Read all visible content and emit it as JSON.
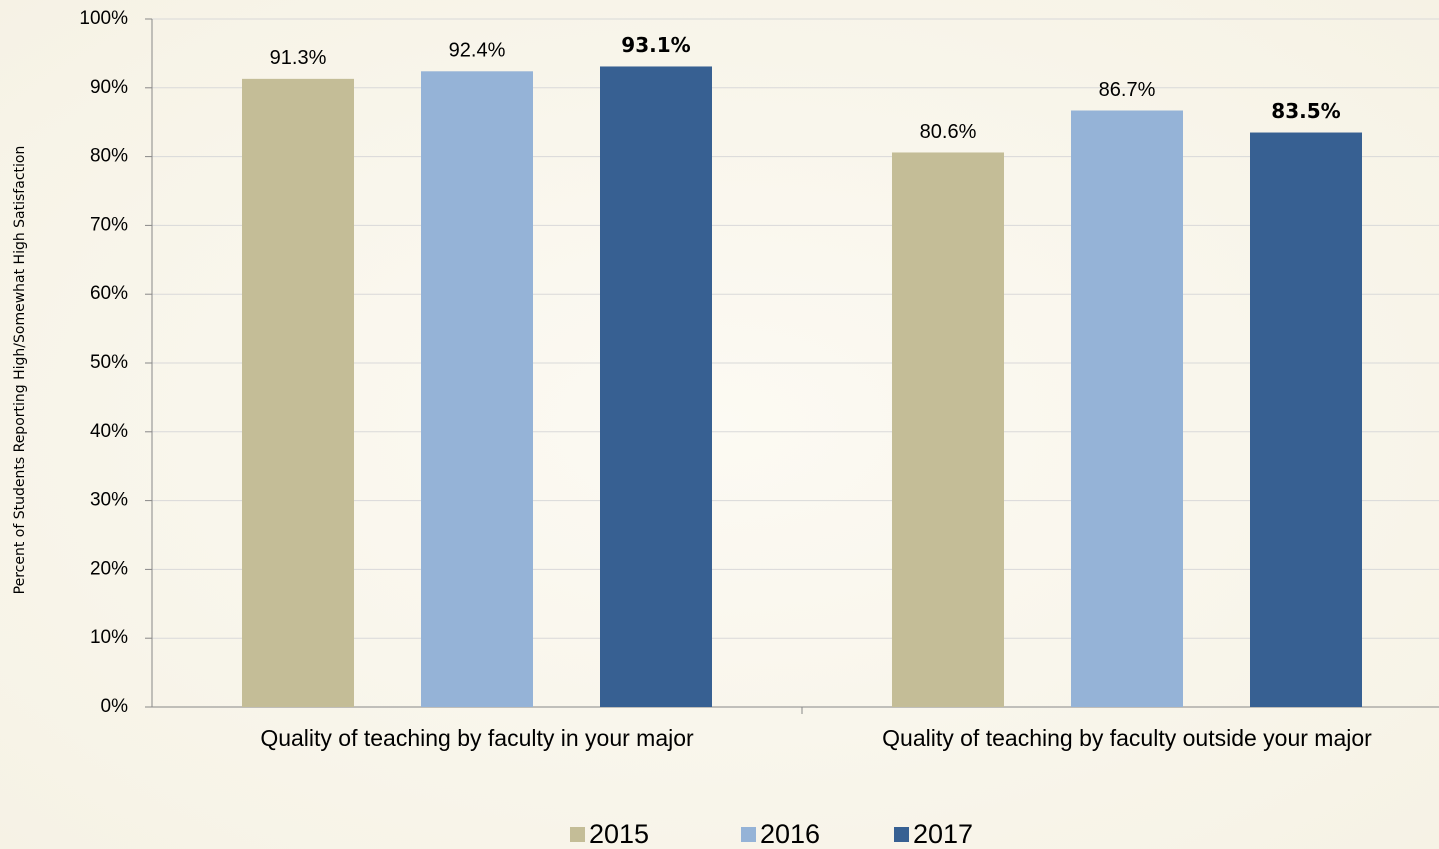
{
  "chart_data": {
    "type": "bar",
    "y_axis_label": "Percent of Students Reporting High/Somewhat High Satisfaction",
    "categories": [
      "Quality of teaching by faculty in your major",
      "Quality of teaching by faculty outside your major"
    ],
    "series": [
      {
        "name": "2015",
        "color": "#c4bd97",
        "values": [
          91.3,
          80.6
        ],
        "value_labels": [
          "91.3%",
          "80.6%"
        ]
      },
      {
        "name": "2016",
        "color": "#95b3d7",
        "values": [
          92.4,
          86.7
        ],
        "value_labels": [
          "92.4%",
          "86.7%"
        ]
      },
      {
        "name": "2017",
        "color": "#376092",
        "values": [
          93.1,
          83.5
        ],
        "value_labels": [
          "93.1%",
          "83.5%"
        ]
      }
    ],
    "ylim": [
      0,
      100
    ],
    "yticks": [
      {
        "value": 0,
        "label": "0%"
      },
      {
        "value": 10,
        "label": "10%"
      },
      {
        "value": 20,
        "label": "20%"
      },
      {
        "value": 30,
        "label": "30%"
      },
      {
        "value": 40,
        "label": "40%"
      },
      {
        "value": 50,
        "label": "50%"
      },
      {
        "value": 60,
        "label": "60%"
      },
      {
        "value": 70,
        "label": "70%"
      },
      {
        "value": 80,
        "label": "80%"
      },
      {
        "value": 90,
        "label": "90%"
      },
      {
        "value": 100,
        "label": "100%"
      }
    ],
    "grid": true,
    "legend": "bottom"
  }
}
